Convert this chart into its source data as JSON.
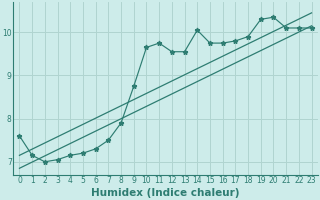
{
  "xlabel": "Humidex (Indice chaleur)",
  "ylabel": "",
  "bg_color": "#cdecea",
  "grid_color": "#b0d4d0",
  "line_color": "#2e7d72",
  "xlim": [
    -0.5,
    23.5
  ],
  "ylim": [
    6.7,
    10.7
  ],
  "yticks": [
    7,
    8,
    9,
    10
  ],
  "xticks": [
    0,
    1,
    2,
    3,
    4,
    5,
    6,
    7,
    8,
    9,
    10,
    11,
    12,
    13,
    14,
    15,
    16,
    17,
    18,
    19,
    20,
    21,
    22,
    23
  ],
  "main_x": [
    0,
    1,
    2,
    3,
    4,
    5,
    6,
    7,
    8,
    9,
    10,
    11,
    12,
    13,
    14,
    15,
    16,
    17,
    18,
    19,
    20,
    21,
    22,
    23
  ],
  "main_y": [
    7.6,
    7.15,
    7.0,
    7.05,
    7.15,
    7.2,
    7.3,
    7.5,
    7.9,
    8.75,
    9.65,
    9.75,
    9.55,
    9.55,
    10.05,
    9.75,
    9.75,
    9.8,
    9.9,
    10.3,
    10.35,
    10.1,
    10.1,
    10.1
  ],
  "line1_x": [
    0,
    23
  ],
  "line1_y": [
    6.85,
    10.15
  ],
  "line2_x": [
    0,
    23
  ],
  "line2_y": [
    7.15,
    10.45
  ],
  "tick_fontsize": 5.5,
  "xlabel_fontsize": 7.5
}
